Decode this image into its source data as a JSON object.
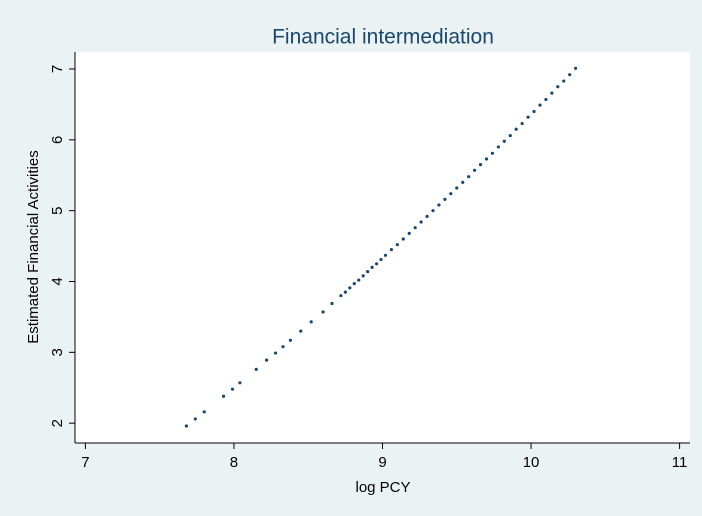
{
  "chart_data": {
    "type": "scatter",
    "title": "Financial intermediation",
    "x_label": "log PCY",
    "y_label": "Estimated Financial Activities",
    "color": "#1a476f",
    "xlim": [
      6.93,
      11.07
    ],
    "ylim": [
      1.72,
      7.24
    ],
    "xticks": [
      7,
      8,
      9,
      10,
      11
    ],
    "yticks": [
      2,
      3,
      4,
      5,
      6,
      7
    ],
    "x": [
      7.68,
      7.74,
      7.8,
      7.93,
      7.99,
      8.04,
      8.15,
      8.22,
      8.28,
      8.33,
      8.38,
      8.45,
      8.52,
      8.6,
      8.66,
      8.72,
      8.75,
      8.78,
      8.81,
      8.84,
      8.87,
      8.9,
      8.93,
      8.96,
      8.99,
      9.02,
      9.06,
      9.1,
      9.14,
      9.18,
      9.22,
      9.26,
      9.3,
      9.34,
      9.38,
      9.42,
      9.46,
      9.5,
      9.54,
      9.58,
      9.62,
      9.66,
      9.7,
      9.74,
      9.78,
      9.82,
      9.86,
      9.9,
      9.94,
      9.98,
      10.02,
      10.06,
      10.1,
      10.14,
      10.18,
      10.22,
      10.26,
      10.3
    ],
    "values": [
      1.96,
      2.06,
      2.16,
      2.38,
      2.48,
      2.57,
      2.76,
      2.89,
      2.99,
      3.08,
      3.17,
      3.3,
      3.43,
      3.57,
      3.69,
      3.8,
      3.85,
      3.91,
      3.97,
      4.02,
      4.08,
      4.14,
      4.2,
      4.25,
      4.31,
      4.37,
      4.45,
      4.52,
      4.6,
      4.68,
      4.76,
      4.84,
      4.92,
      5.0,
      5.08,
      5.16,
      5.24,
      5.32,
      5.4,
      5.48,
      5.57,
      5.65,
      5.73,
      5.81,
      5.9,
      5.98,
      6.06,
      6.15,
      6.23,
      6.32,
      6.4,
      6.49,
      6.57,
      6.66,
      6.75,
      6.83,
      6.92,
      7.01
    ]
  }
}
